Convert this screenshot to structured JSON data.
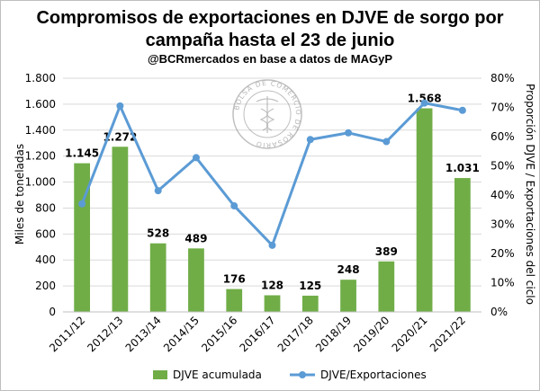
{
  "chart_data": {
    "type": "bar",
    "title_line1": "Compromisos de exportaciones en DJVE de sorgo por",
    "title_line2": "campaña hasta el 23 de junio",
    "subtitle": "@BCRmercados en base a datos de MAGyP",
    "categories": [
      "2011/12",
      "2012/13",
      "2013/14",
      "2014/15",
      "2015/16",
      "2016/17",
      "2017/18",
      "2018/19",
      "2019/20",
      "2020/21",
      "2021/22"
    ],
    "series": [
      {
        "name": "DJVE acumulada",
        "type": "bar",
        "axis": "left",
        "color": "#70ad47",
        "values": [
          1145,
          1272,
          528,
          489,
          176,
          128,
          125,
          248,
          389,
          1568,
          1031
        ],
        "labels": [
          "1.145",
          "1.272",
          "528",
          "489",
          "176",
          "128",
          "125",
          "248",
          "389",
          "1.568",
          "1.031"
        ]
      },
      {
        "name": "DJVE/Exportaciones",
        "type": "line",
        "axis": "right",
        "color": "#5b9bd5",
        "values": [
          0.37,
          0.705,
          0.415,
          0.528,
          0.363,
          0.228,
          0.59,
          0.613,
          0.583,
          0.715,
          0.69
        ]
      }
    ],
    "ylabel": "Miles de toneladas",
    "ylabel_right": "Proporción DJVE / Exportaciones del ciclo",
    "ylim": [
      0,
      1800
    ],
    "ylim_right": [
      0,
      0.8
    ],
    "yticks": [
      0,
      200,
      400,
      600,
      800,
      1000,
      1200,
      1400,
      1600,
      1800
    ],
    "ytick_labels": [
      "0",
      "200",
      "400",
      "600",
      "800",
      "1.000",
      "1.200",
      "1.400",
      "1.600",
      "1.800"
    ],
    "yticks_right": [
      0,
      0.1,
      0.2,
      0.3,
      0.4,
      0.5,
      0.6,
      0.7,
      0.8
    ],
    "ytick_labels_right": [
      "0%",
      "10%",
      "20%",
      "30%",
      "40%",
      "50%",
      "60%",
      "70%",
      "80%"
    ],
    "grid": true,
    "legend_position": "bottom"
  },
  "watermark_text": "BOLSA DE COMERCIO DE ROSARIO"
}
